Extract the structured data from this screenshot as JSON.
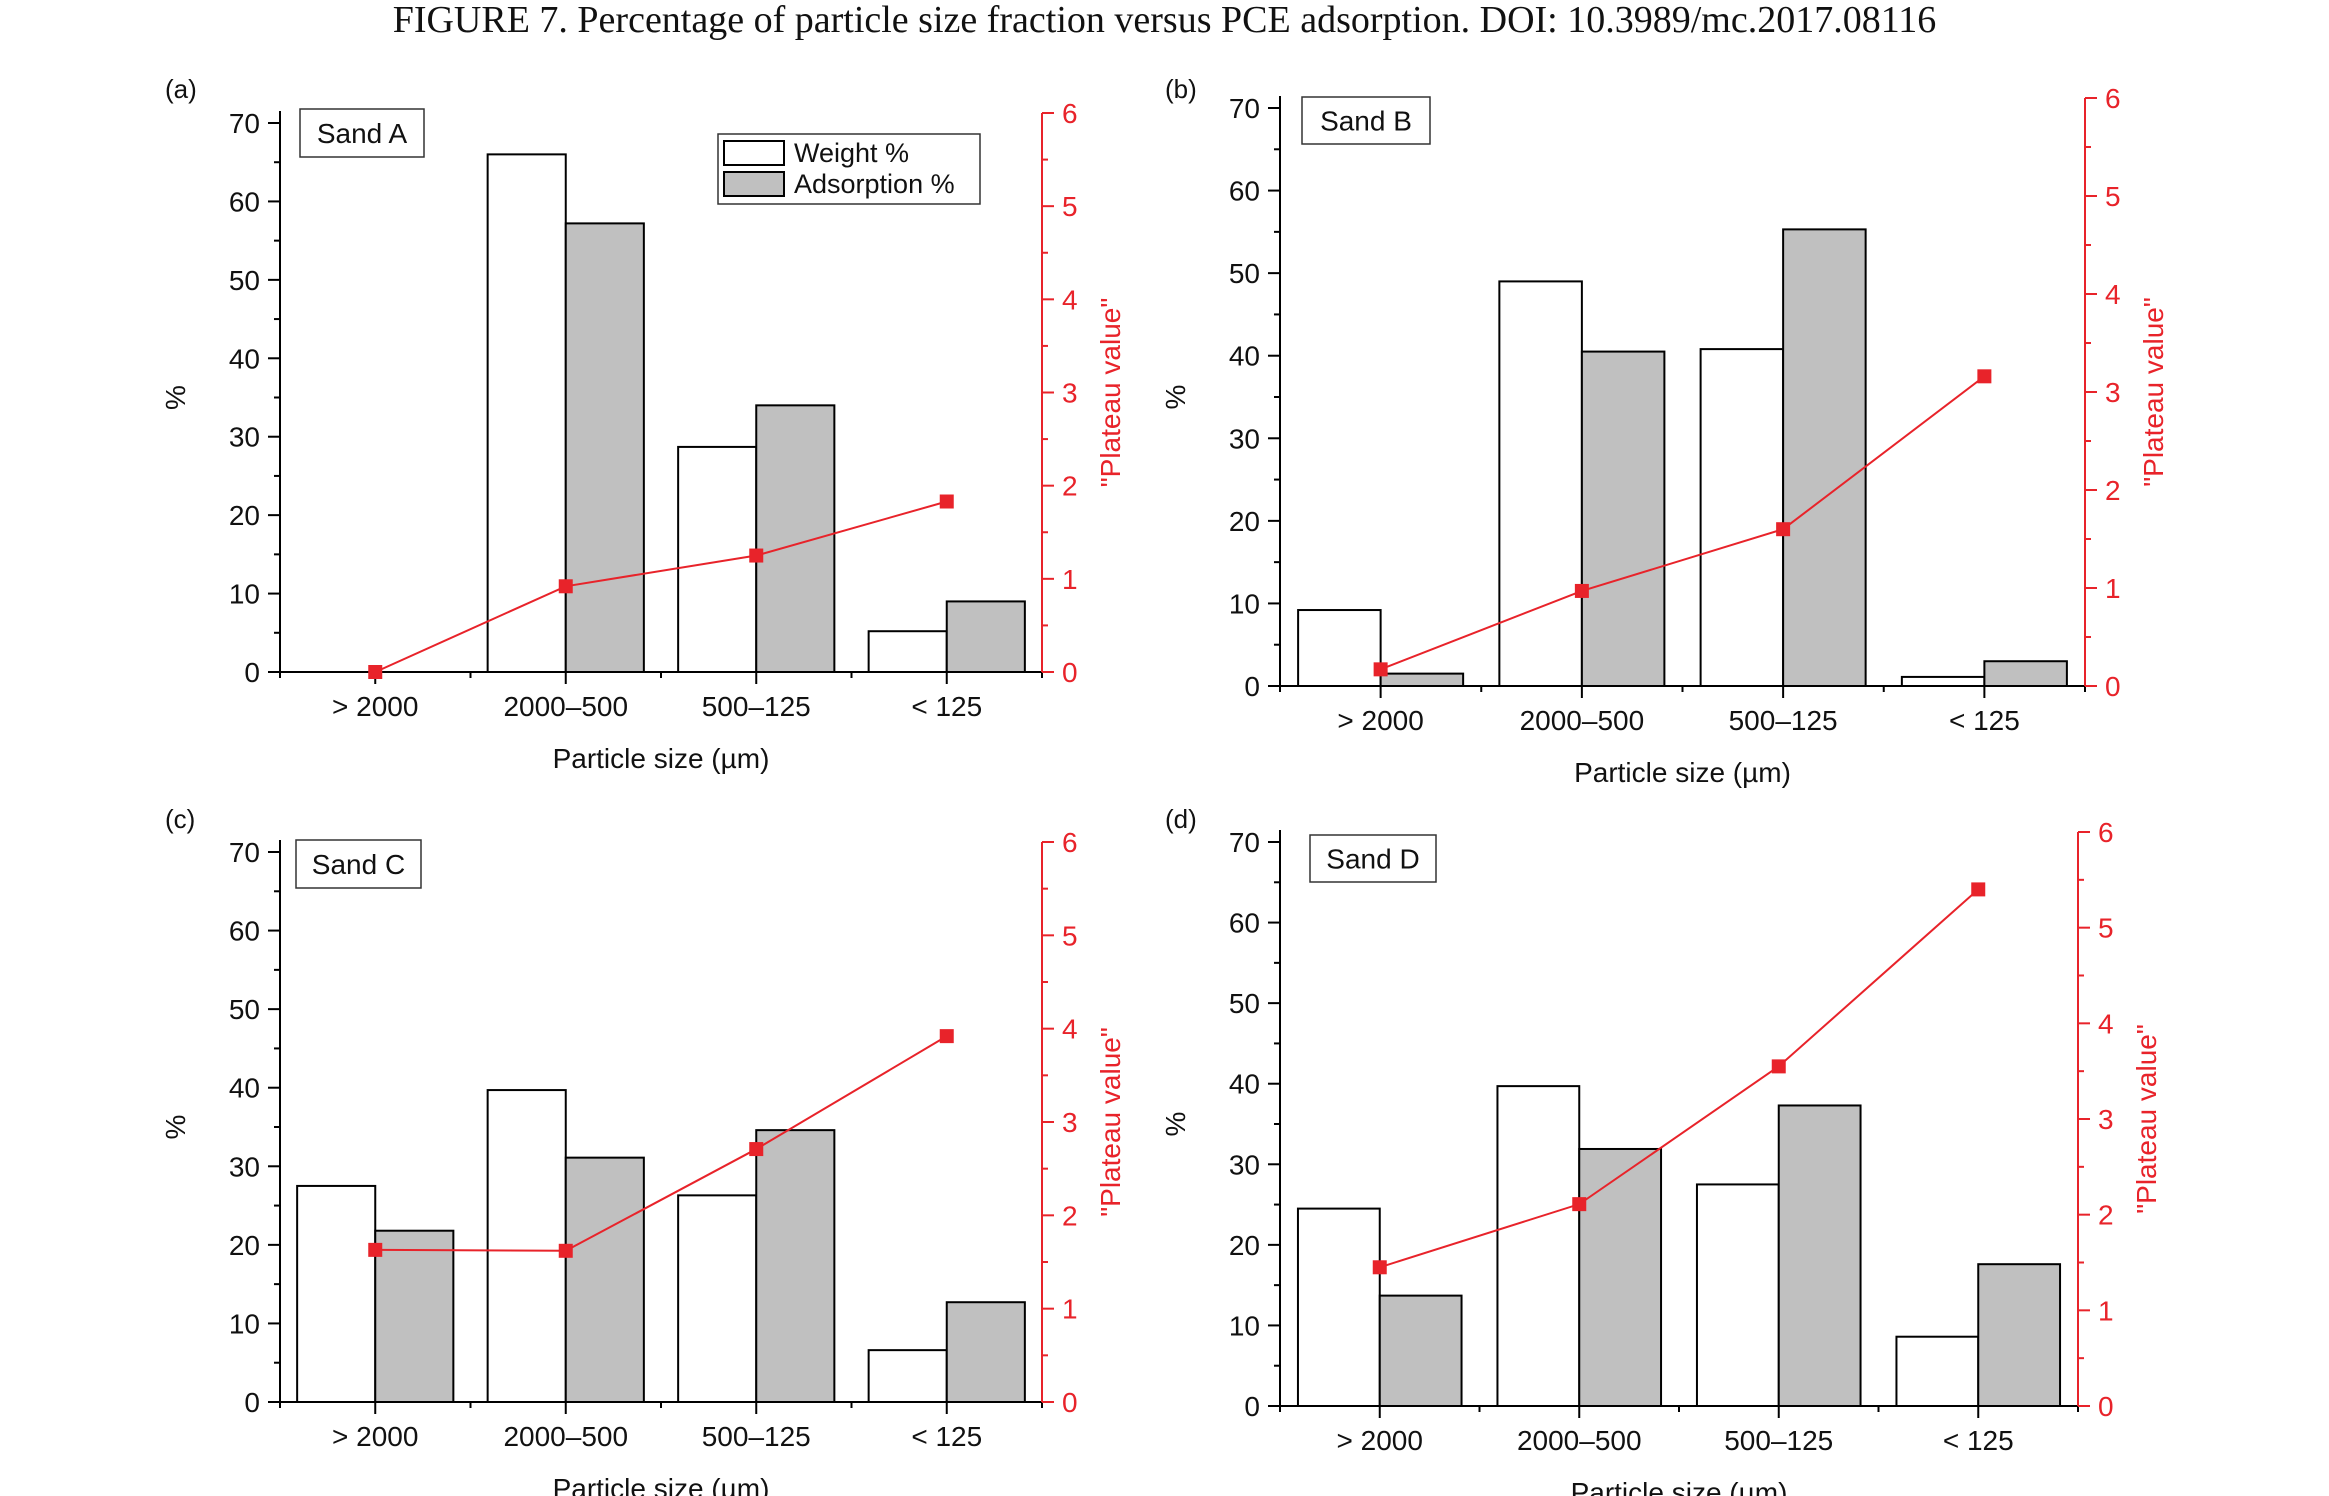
{
  "caption": "FIGURE 7. Percentage of particle size fraction versus PCE adsorption. DOI: 10.3989/mc.2017.08116",
  "colors": {
    "weight_fill": "#ffffff",
    "adsorption_fill": "#c0c0c0",
    "bar_stroke": "#000000",
    "plateau_line": "#e8232a",
    "axis": "#000000"
  },
  "chart_data": [
    {
      "type": "bar",
      "panel_label": "(a)",
      "title": "Sand A",
      "categories": [
        "> 2000",
        "2000–500",
        "500–125",
        "< 125"
      ],
      "xlabel": "Particle size (µm)",
      "ylabel": "%",
      "ylim": [
        0,
        70
      ],
      "yticks": [
        0,
        10,
        20,
        30,
        40,
        50,
        60,
        70
      ],
      "y2label": "\"Plateau value\"",
      "y2lim": [
        0,
        6
      ],
      "y2ticks": [
        0,
        1,
        2,
        3,
        4,
        5,
        6
      ],
      "legend": [
        "Weight %",
        "Adsorption %"
      ],
      "legend_position": "top-right",
      "series": [
        {
          "name": "Weight %",
          "values": [
            0,
            66,
            28.7,
            5.2
          ]
        },
        {
          "name": "Adsorption %",
          "values": [
            0,
            57.2,
            34,
            9
          ]
        }
      ],
      "line": {
        "values": [
          0,
          0.92,
          1.25,
          1.83
        ]
      }
    },
    {
      "type": "bar",
      "panel_label": "(b)",
      "title": "Sand B",
      "categories": [
        "> 2000",
        "2000–500",
        "500–125",
        "< 125"
      ],
      "xlabel": "Particle size (µm)",
      "ylabel": "%",
      "ylim": [
        0,
        70
      ],
      "yticks": [
        0,
        10,
        20,
        30,
        40,
        50,
        60,
        70
      ],
      "y2label": "\"Plateau value\"",
      "y2lim": [
        0,
        6
      ],
      "y2ticks": [
        0,
        1,
        2,
        3,
        4,
        5,
        6
      ],
      "series": [
        {
          "name": "Weight %",
          "values": [
            9.2,
            49,
            40.8,
            1.1
          ]
        },
        {
          "name": "Adsorption %",
          "values": [
            1.5,
            40.5,
            55.3,
            3
          ]
        }
      ],
      "line": {
        "values": [
          0.17,
          0.97,
          1.6,
          3.16
        ]
      }
    },
    {
      "type": "bar",
      "panel_label": "(c)",
      "title": "Sand C",
      "categories": [
        "> 2000",
        "2000–500",
        "500–125",
        "< 125"
      ],
      "xlabel": "Particle size (µm)",
      "ylabel": "%",
      "ylim": [
        0,
        70
      ],
      "yticks": [
        0,
        10,
        20,
        30,
        40,
        50,
        60,
        70
      ],
      "y2label": "\"Plateau value\"",
      "y2lim": [
        0,
        6
      ],
      "y2ticks": [
        0,
        1,
        2,
        3,
        4,
        5,
        6
      ],
      "series": [
        {
          "name": "Weight %",
          "values": [
            27.5,
            39.7,
            26.3,
            6.6
          ]
        },
        {
          "name": "Adsorption %",
          "values": [
            21.8,
            31.1,
            34.6,
            12.7
          ]
        }
      ],
      "line": {
        "values": [
          1.63,
          1.62,
          2.71,
          3.92
        ]
      }
    },
    {
      "type": "bar",
      "panel_label": "(d)",
      "title": "Sand D",
      "categories": [
        "> 2000",
        "2000–500",
        "500–125",
        "< 125"
      ],
      "xlabel": "Particle size (µm)",
      "ylabel": "%",
      "ylim": [
        0,
        70
      ],
      "yticks": [
        0,
        10,
        20,
        30,
        40,
        50,
        60,
        70
      ],
      "y2label": "\"Plateau value\"",
      "y2lim": [
        0,
        6
      ],
      "y2ticks": [
        0,
        1,
        2,
        3,
        4,
        5,
        6
      ],
      "series": [
        {
          "name": "Weight %",
          "values": [
            24.5,
            39.7,
            27.5,
            8.6
          ]
        },
        {
          "name": "Adsorption %",
          "values": [
            13.7,
            31.9,
            37.3,
            17.6
          ]
        }
      ],
      "line": {
        "values": [
          1.45,
          2.11,
          3.55,
          5.4
        ]
      }
    }
  ]
}
